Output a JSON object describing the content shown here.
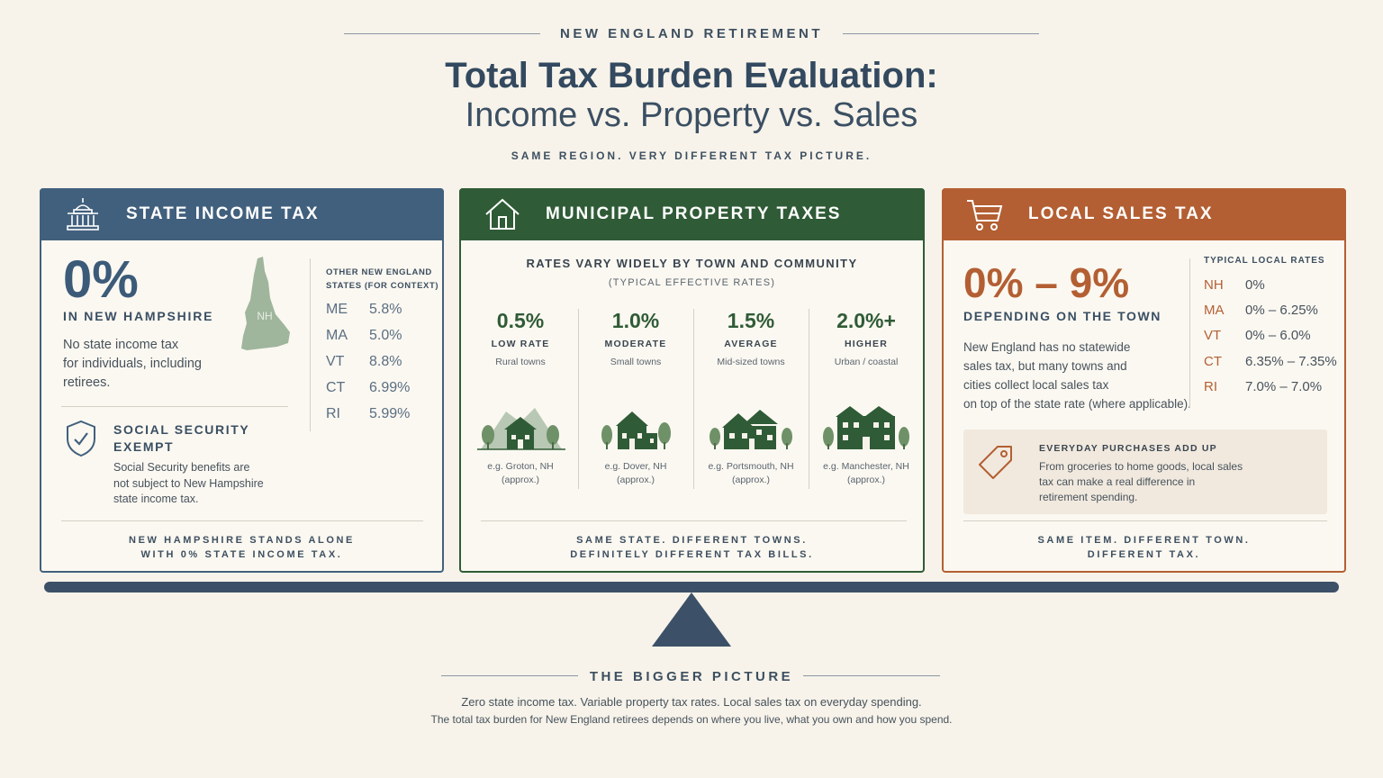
{
  "header": {
    "eyebrow": "NEW ENGLAND RETIREMENT",
    "title_line1": "Total Tax Burden Evaluation:",
    "title_line2": "Income vs. Property vs. Sales",
    "subtitle": "SAME REGION. VERY DIFFERENT TAX PICTURE."
  },
  "colors": {
    "income": "#41607d",
    "property": "#2f5b36",
    "sales": "#b35f33",
    "background": "#f7f3ea"
  },
  "income_card": {
    "icon": "capitol-building-icon",
    "title": "STATE INCOME TAX",
    "big_value": "0%",
    "big_label": "IN NEW HAMPSHIRE",
    "map_label": "NH",
    "body_lines": [
      "No state income tax",
      "for individuals, including",
      "retirees."
    ],
    "context_heading_line1": "OTHER NEW ENGLAND",
    "context_heading_line2": "STATES (FOR CONTEXT)",
    "states": [
      {
        "abbr": "ME",
        "rate": "5.8%"
      },
      {
        "abbr": "MA",
        "rate": "5.0%"
      },
      {
        "abbr": "VT",
        "rate": "8.8%"
      },
      {
        "abbr": "CT",
        "rate": "6.99%"
      },
      {
        "abbr": "RI",
        "rate": "5.99%"
      }
    ],
    "ss_icon": "shield-check-icon",
    "ss_title_line1": "SOCIAL SECURITY",
    "ss_title_line2": "EXEMPT",
    "ss_body_lines": [
      "Social Security benefits are",
      "not subject to New Hampshire",
      "state income tax."
    ],
    "footer_line1": "NEW HAMPSHIRE STANDS ALONE",
    "footer_line2": "WITH 0% STATE INCOME TAX."
  },
  "property_card": {
    "icon": "house-icon",
    "title": "MUNICIPAL PROPERTY TAXES",
    "heading": "RATES VARY WIDELY BY TOWN AND COMMUNITY",
    "subheading": "(TYPICAL EFFECTIVE RATES)",
    "tiers": [
      {
        "rate": "0.5%",
        "label": "LOW RATE",
        "desc": "Rural towns",
        "eg_line1": "e.g. Groton, NH",
        "eg_line2": "(approx.)"
      },
      {
        "rate": "1.0%",
        "label": "MODERATE",
        "desc": "Small towns",
        "eg_line1": "e.g. Dover, NH",
        "eg_line2": "(approx.)"
      },
      {
        "rate": "1.5%",
        "label": "AVERAGE",
        "desc": "Mid-sized towns",
        "eg_line1": "e.g. Portsmouth, NH",
        "eg_line2": "(approx.)"
      },
      {
        "rate": "2.0%+",
        "label": "HIGHER",
        "desc": "Urban / coastal",
        "eg_line1": "e.g. Manchester, NH",
        "eg_line2": "(approx.)"
      }
    ],
    "footer_line1": "SAME STATE. DIFFERENT TOWNS.",
    "footer_line2": "DEFINITELY DIFFERENT TAX BILLS."
  },
  "sales_card": {
    "icon": "shopping-cart-icon",
    "title": "LOCAL SALES TAX",
    "big_value": "0% – 9%",
    "big_label": "DEPENDING ON THE TOWN",
    "body_lines": [
      "New England has no statewide",
      "sales tax, but many towns and",
      "cities collect local sales tax",
      "on top of the state rate (where applicable)."
    ],
    "rates_heading": "TYPICAL LOCAL RATES",
    "rates": [
      {
        "abbr": "NH",
        "rate": "0%"
      },
      {
        "abbr": "MA",
        "rate": "0% – 6.25%"
      },
      {
        "abbr": "VT",
        "rate": "0% – 6.0%"
      },
      {
        "abbr": "CT",
        "rate": "6.35% – 7.35%"
      },
      {
        "abbr": "RI",
        "rate": "7.0% – 7.0%"
      }
    ],
    "callout_icon": "price-tag-icon",
    "callout_title": "EVERYDAY PURCHASES ADD UP",
    "callout_lines": [
      "From groceries to home goods, local sales",
      "tax can make a real difference in",
      "retirement spending."
    ],
    "footer_line1": "SAME ITEM. DIFFERENT TOWN.",
    "footer_line2": "DIFFERENT TAX."
  },
  "bigger_picture": {
    "title": "THE BIGGER PICTURE",
    "line1": "Zero state income tax. Variable property tax rates. Local sales tax on everyday spending.",
    "line2": "The total tax burden for New England retirees depends on where you live, what you own and how you spend."
  }
}
